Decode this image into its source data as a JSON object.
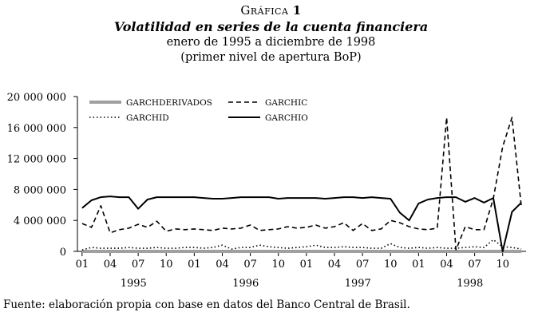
{
  "figure": {
    "label_prefix": "Gráfica",
    "label_number": "1",
    "title": "Volatilidad en series de la cuenta financiera",
    "subtitle_1": "enero de 1995 a diciembre de 1998",
    "subtitle_2": "(primer nivel de apertura BoP)",
    "source": "Fuente: elaboración propia con base en datos del Banco Central de Brasil."
  },
  "colors": {
    "axis": "#000000",
    "derivados": "#a0a0a0",
    "series": "#000000"
  },
  "chart_data": {
    "type": "line",
    "title": "Volatilidad en series de la cuenta financiera",
    "xlabel": "",
    "ylabel": "",
    "ylim": [
      0,
      20000000
    ],
    "yticks": [
      0,
      4000000,
      8000000,
      12000000,
      16000000,
      20000000
    ],
    "ytick_labels": [
      "0",
      "4 000 000",
      "8 000 000",
      "12 000 000",
      "16 000 000",
      "20 000 000"
    ],
    "month_tick_labels": [
      "01",
      "04",
      "07",
      "10",
      "01",
      "04",
      "07",
      "10",
      "01",
      "04",
      "07",
      "10",
      "01",
      "04",
      "07",
      "10"
    ],
    "year_labels": [
      "1995",
      "1996",
      "1997",
      "1998"
    ],
    "x": [
      "1995-01",
      "1995-02",
      "1995-03",
      "1995-04",
      "1995-05",
      "1995-06",
      "1995-07",
      "1995-08",
      "1995-09",
      "1995-10",
      "1995-11",
      "1995-12",
      "1996-01",
      "1996-02",
      "1996-03",
      "1996-04",
      "1996-05",
      "1996-06",
      "1996-07",
      "1996-08",
      "1996-09",
      "1996-10",
      "1996-11",
      "1996-12",
      "1997-01",
      "1997-02",
      "1997-03",
      "1997-04",
      "1997-05",
      "1997-06",
      "1997-07",
      "1997-08",
      "1997-09",
      "1997-10",
      "1997-11",
      "1997-12",
      "1998-01",
      "1998-02",
      "1998-03",
      "1998-04",
      "1998-05",
      "1998-06",
      "1998-07",
      "1998-08",
      "1998-09",
      "1998-10",
      "1998-11",
      "1998-12"
    ],
    "grid": false,
    "legend_position": "top-left inside plot",
    "series": [
      {
        "name": "GARCHDERIVADOS",
        "style": "thick-gray",
        "values": [
          0,
          0,
          0,
          0,
          0,
          0,
          0,
          0,
          0,
          0,
          0,
          0,
          0,
          0,
          0,
          0,
          0,
          0,
          0,
          0,
          0,
          0,
          0,
          0,
          0,
          0,
          0,
          0,
          0,
          0,
          0,
          0,
          0,
          0,
          0,
          0,
          0,
          0,
          0,
          0,
          0,
          0,
          0,
          0,
          0,
          0,
          0,
          0
        ]
      },
      {
        "name": "GARCHIC",
        "style": "dashed",
        "values": [
          3600000,
          3100000,
          5900000,
          2400000,
          2800000,
          3000000,
          3500000,
          3100000,
          3900000,
          2600000,
          2900000,
          2800000,
          2900000,
          2800000,
          2700000,
          3000000,
          2900000,
          3000000,
          3400000,
          2700000,
          2800000,
          2900000,
          3200000,
          3000000,
          3100000,
          3400000,
          3000000,
          3200000,
          3700000,
          2700000,
          3600000,
          2700000,
          2900000,
          4000000,
          3700000,
          3200000,
          2900000,
          2800000,
          3000000,
          17300000,
          200000,
          3200000,
          2800000,
          2800000,
          6800000,
          13500000,
          17300000,
          5800000
        ]
      },
      {
        "name": "GARCHID",
        "style": "dotted",
        "values": [
          200000,
          500000,
          400000,
          400000,
          400000,
          500000,
          400000,
          400000,
          500000,
          400000,
          400000,
          500000,
          500000,
          400000,
          500000,
          800000,
          300000,
          500000,
          500000,
          800000,
          600000,
          500000,
          400000,
          500000,
          600000,
          800000,
          500000,
          500000,
          600000,
          500000,
          500000,
          400000,
          400000,
          1000000,
          500000,
          400000,
          500000,
          400000,
          500000,
          400000,
          400000,
          500000,
          600000,
          500000,
          1500000,
          600000,
          500000,
          300000
        ]
      },
      {
        "name": "GARCHIO",
        "style": "solid",
        "values": [
          5600000,
          6600000,
          7000000,
          7100000,
          7000000,
          7000000,
          5500000,
          6700000,
          7000000,
          7000000,
          7000000,
          7000000,
          7000000,
          6900000,
          6800000,
          6800000,
          6900000,
          7000000,
          7000000,
          7000000,
          7000000,
          6800000,
          6900000,
          6900000,
          6900000,
          6900000,
          6800000,
          6900000,
          7000000,
          7000000,
          6900000,
          7000000,
          6900000,
          6800000,
          5000000,
          4000000,
          6200000,
          6700000,
          6900000,
          7000000,
          7000000,
          6400000,
          6900000,
          6300000,
          6900000,
          0,
          5100000,
          6300000
        ]
      }
    ]
  }
}
